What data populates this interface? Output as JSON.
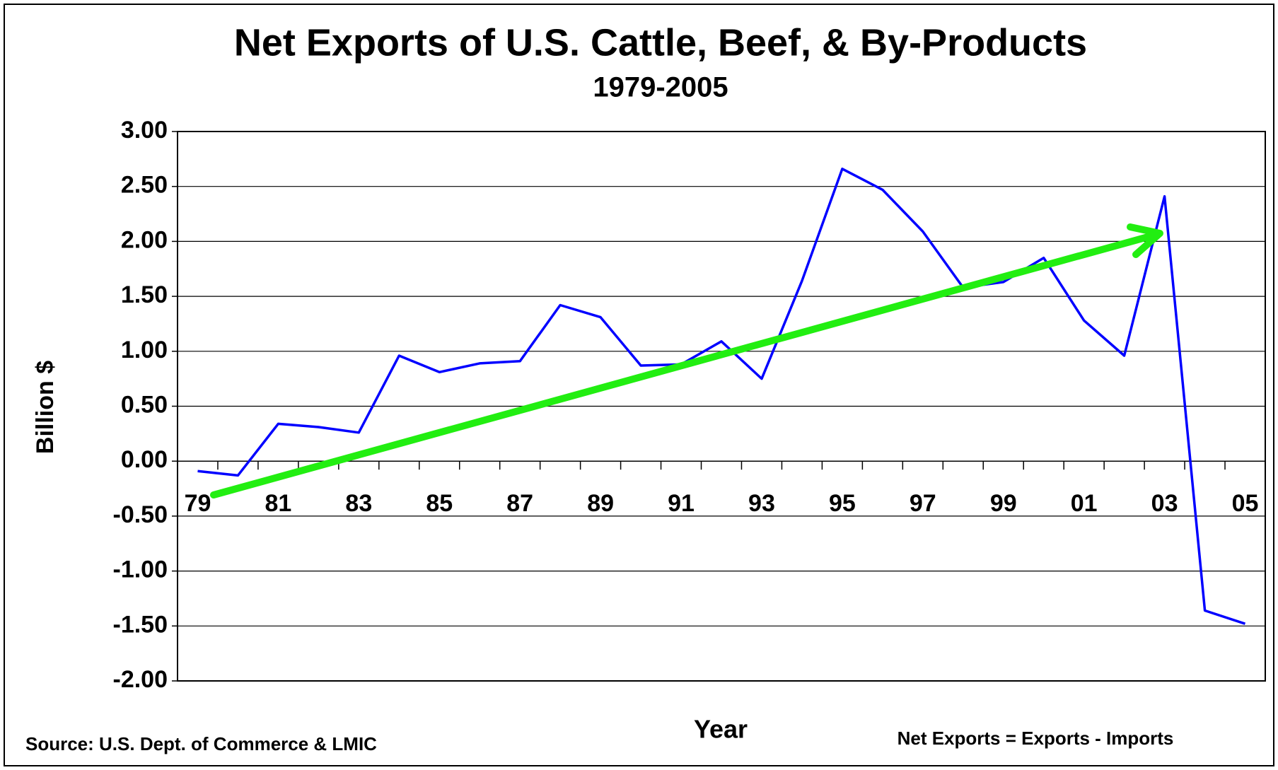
{
  "chart_data": {
    "type": "line",
    "title": "Net Exports of U.S. Cattle, Beef, & By-Products",
    "subtitle": "1979-2005",
    "y_label": "Billion $",
    "x_label": "Year",
    "source": "Source: U.S. Dept. of Commerce & LMIC",
    "note": "Net Exports = Exports - Imports",
    "categories": [
      "79",
      null,
      "81",
      null,
      "83",
      null,
      "85",
      null,
      "87",
      null,
      "89",
      null,
      "91",
      null,
      "93",
      null,
      "95",
      null,
      "97",
      null,
      "99",
      null,
      "01",
      null,
      "03",
      null,
      "05"
    ],
    "series": [
      {
        "name": "Net Exports",
        "color": "#0000ff",
        "values": [
          -0.09,
          -0.13,
          0.34,
          0.31,
          0.26,
          0.96,
          0.81,
          0.89,
          0.91,
          1.42,
          1.31,
          0.87,
          0.88,
          1.09,
          0.75,
          1.64,
          2.66,
          2.47,
          2.09,
          1.58,
          1.63,
          1.85,
          1.28,
          0.96,
          2.41,
          -1.36,
          -1.48
        ]
      }
    ],
    "ylim": [
      -2,
      3
    ],
    "yticks": [
      {
        "value": -2,
        "label": "-2.00"
      },
      {
        "value": -1.5,
        "label": "-1.50"
      },
      {
        "value": -1,
        "label": "-1.00"
      },
      {
        "value": -0.5,
        "label": "-0.50"
      },
      {
        "value": 0,
        "label": "0.00"
      },
      {
        "value": 0.5,
        "label": "0.50"
      },
      {
        "value": 1,
        "label": "1.00"
      },
      {
        "value": 1.5,
        "label": "1.50"
      },
      {
        "value": 2,
        "label": "2.00"
      },
      {
        "value": 2.5,
        "label": "2.50"
      },
      {
        "value": 3,
        "label": "3.00"
      }
    ],
    "grid": true
  }
}
